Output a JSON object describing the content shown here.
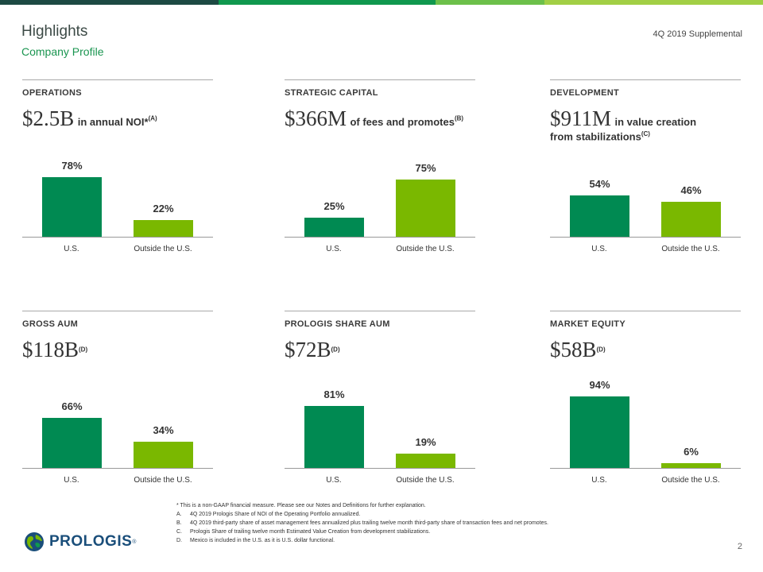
{
  "header": {
    "title": "Highlights",
    "subtitle": "Company Profile",
    "supplemental": "4Q 2019 Supplemental"
  },
  "colors": {
    "dark_green": "#008a52",
    "light_green": "#7ab800",
    "topbar": [
      "#1d4a43",
      "#0b6e4b",
      "#10984e",
      "#6cc04a",
      "#a2cf45"
    ]
  },
  "panels": [
    {
      "heading": "OPERATIONS",
      "value": "$2.5B",
      "desc": "in annual NOI*",
      "note": "(A)",
      "desc_line2": ""
    },
    {
      "heading": "STRATEGIC  CAPITAL",
      "value": "$366M",
      "desc": "of fees and promotes",
      "note": "(B)",
      "desc_line2": ""
    },
    {
      "heading": "DEVELOPMENT",
      "value": "$911M",
      "desc": "in value creation",
      "note": "",
      "desc_line2": "from stabilizations",
      "desc_line2_note": "(C)"
    },
    {
      "heading": "GROSS  AUM",
      "value": "$118B",
      "desc": "",
      "note": "(D)",
      "desc_line2": ""
    },
    {
      "heading": "PROLOGIS SHARE AUM",
      "value": "$72B",
      "desc": "",
      "note": "(D)",
      "desc_line2": ""
    },
    {
      "heading": "MARKET  EQUITY",
      "value": "$58B",
      "desc": "",
      "note": "(D)",
      "desc_line2": ""
    }
  ],
  "chart_data": [
    {
      "type": "bar",
      "categories": [
        "U.S.",
        "Outside the U.S."
      ],
      "values": [
        78,
        22
      ],
      "labels": [
        "78%",
        "22%"
      ],
      "ylim": [
        0,
        100
      ]
    },
    {
      "type": "bar",
      "categories": [
        "U.S.",
        "Outside the U.S."
      ],
      "values": [
        25,
        75
      ],
      "labels": [
        "25%",
        "75%"
      ],
      "ylim": [
        0,
        100
      ]
    },
    {
      "type": "bar",
      "categories": [
        "U.S.",
        "Outside the U.S."
      ],
      "values": [
        54,
        46
      ],
      "labels": [
        "54%",
        "46%"
      ],
      "ylim": [
        0,
        100
      ]
    },
    {
      "type": "bar",
      "categories": [
        "U.S.",
        "Outside the U.S."
      ],
      "values": [
        66,
        34
      ],
      "labels": [
        "66%",
        "34%"
      ],
      "ylim": [
        0,
        100
      ]
    },
    {
      "type": "bar",
      "categories": [
        "U.S.",
        "Outside the U.S."
      ],
      "values": [
        81,
        19
      ],
      "labels": [
        "81%",
        "19%"
      ],
      "ylim": [
        0,
        100
      ]
    },
    {
      "type": "bar",
      "categories": [
        "U.S.",
        "Outside the U.S."
      ],
      "values": [
        94,
        6
      ],
      "labels": [
        "94%",
        "6%"
      ],
      "ylim": [
        0,
        100
      ]
    }
  ],
  "footnotes": {
    "intro": "* This is a non-GAAP financial measure.  Please see our Notes and Definitions for further explanation.",
    "items": [
      {
        "letter": "A.",
        "text": "4Q 2019 Prologis Share of NOI of the Operating  Portfolio annualized."
      },
      {
        "letter": "B.",
        "text": "4Q 2019 third-party share of asset management  fees annualized plus trailing  twelve  month third-party share of transaction  fees and net promotes."
      },
      {
        "letter": "C.",
        "text": "Prologis Share of trailing  twelve  month Estimated  Value Creation  from development  stabilizations."
      },
      {
        "letter": "D.",
        "text": "Mexico is included in the U.S. as it is U.S. dollar functional."
      }
    ]
  },
  "logo": {
    "text": "PROLOGIS",
    "reg": "®",
    "icon": "globe-icon"
  },
  "page_number": "2"
}
